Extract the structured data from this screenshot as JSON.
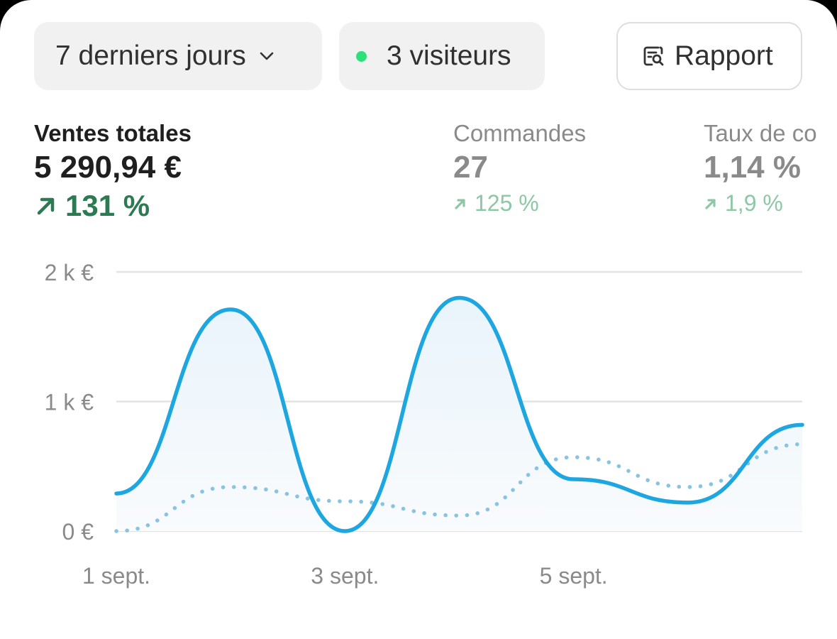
{
  "toolbar": {
    "period_label": "7 derniers jours",
    "visitors_label": "3 visiteurs",
    "report_label": "Rapport"
  },
  "metrics": [
    {
      "label": "Ventes totales",
      "value": "5 290,94 €",
      "change": "131 %"
    },
    {
      "label": "Commandes",
      "value": "27",
      "change": "125 %"
    },
    {
      "label": "Taux de co",
      "value": "1,14 %",
      "change": "1,9 %"
    }
  ],
  "colors": {
    "current_series": "#1ea6e0",
    "previous_series": "#88c3e2",
    "positive_change": "#2c7a52",
    "live_dot": "#2ee07a"
  },
  "chart_data": {
    "type": "line",
    "ylim": [
      0,
      2000
    ],
    "yticks": [
      {
        "value": 0,
        "label": "0 €"
      },
      {
        "value": 1000,
        "label": "1 k €"
      },
      {
        "value": 2000,
        "label": "2 k €"
      }
    ],
    "xticks": [
      {
        "x": 0,
        "label": "1 sept."
      },
      {
        "x": 2,
        "label": "3 sept."
      },
      {
        "x": 4,
        "label": "5 sept."
      }
    ],
    "x": [
      0,
      1,
      2,
      3,
      4,
      5,
      6
    ],
    "series": [
      {
        "values": [
          290,
          1710,
          0,
          1800,
          400,
          220,
          820
        ],
        "style": "solid"
      },
      {
        "values": [
          0,
          340,
          230,
          120,
          570,
          340,
          670
        ],
        "style": "dotted"
      }
    ],
    "grid": true
  }
}
